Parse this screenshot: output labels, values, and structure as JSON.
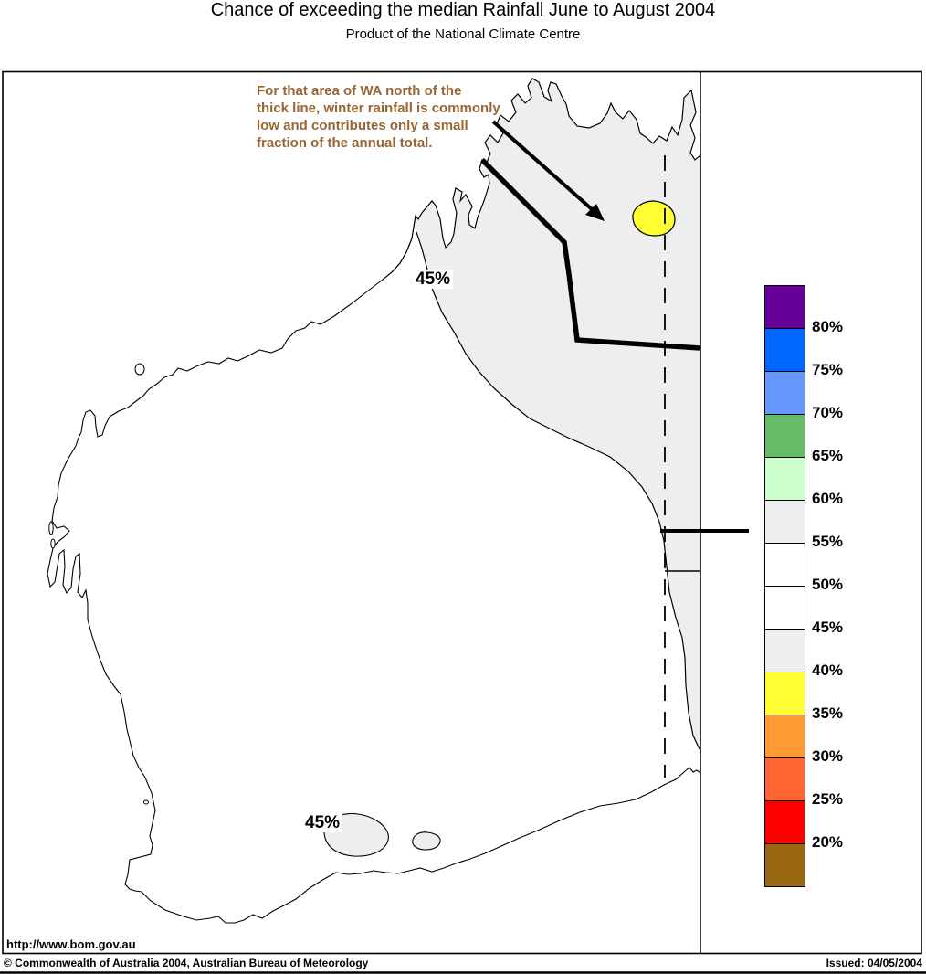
{
  "title": "Chance of exceeding the median Rainfall June to August 2004",
  "subtitle": "Product of the National Climate Centre",
  "annotation": {
    "color": "#996633",
    "lines": [
      "For that area of WA north of the",
      "thick line, winter rainfall is commonly",
      "low and contributes only a small",
      "fraction of the annual total."
    ]
  },
  "map": {
    "label_north": "45%",
    "label_south": "45%",
    "url": "http://www.bom.gov.au",
    "shaded_region_fill": "#EEEEEE",
    "highlight_region_fill": "#FFFF33"
  },
  "legend": {
    "items": [
      {
        "color": "#660099",
        "label": "80%"
      },
      {
        "color": "#0066FF",
        "label": "75%"
      },
      {
        "color": "#6699FF",
        "label": "70%"
      },
      {
        "color": "#66BB66",
        "label": "65%"
      },
      {
        "color": "#CCFFCC",
        "label": "60%"
      },
      {
        "color": "#EEEEEE",
        "label": "55%"
      },
      {
        "color": "#FFFFFF",
        "label": "50%"
      },
      {
        "color": "#FFFFFF",
        "label": "45%"
      },
      {
        "color": "#EEEEEE",
        "label": "40%"
      },
      {
        "color": "#FFFF33",
        "label": "35%"
      },
      {
        "color": "#FF9933",
        "label": "30%"
      },
      {
        "color": "#FF6633",
        "label": "25%"
      },
      {
        "color": "#FF0000",
        "label": "20%"
      },
      {
        "color": "#996611",
        "label": ""
      }
    ]
  },
  "footer": {
    "copyright": "© Commonwealth of Australia 2004, Australian Bureau of Meteorology",
    "issued": "Issued: 04/05/2004"
  }
}
